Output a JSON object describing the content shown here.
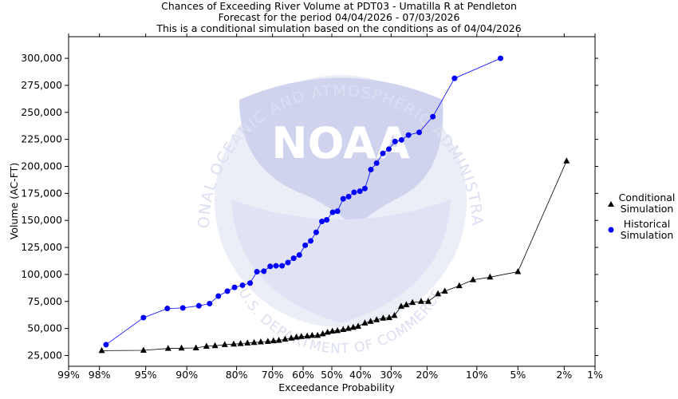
{
  "header": {
    "line1": "Chances of Exceeding River Volume at PDT03 - Umatilla R at Pendleton",
    "line2": "Forecast for the period 04/04/2026 - 07/03/2026",
    "line3": "This is a conditional simulation based on the conditions as of 04/04/2026"
  },
  "watermark": {
    "agency_text": "NATIONAL OCEANIC AND ATMOSPHERIC ADMINISTRATION",
    "logo_text": "NOAA",
    "dept_text": "U.S. DEPARTMENT OF COMMERCE"
  },
  "chart_data": {
    "type": "scatter",
    "xlabel": "Exceedance Probability",
    "ylabel": "Volume (AC-FT)",
    "x_scale": "normal-probability",
    "x_ticks": [
      {
        "p": 99,
        "label": "99%"
      },
      {
        "p": 98,
        "label": "98%"
      },
      {
        "p": 95,
        "label": "95%"
      },
      {
        "p": 90,
        "label": "90%"
      },
      {
        "p": 80,
        "label": "80%"
      },
      {
        "p": 70,
        "label": "70%"
      },
      {
        "p": 60,
        "label": "60%"
      },
      {
        "p": 50,
        "label": "50%"
      },
      {
        "p": 40,
        "label": "40%"
      },
      {
        "p": 30,
        "label": "30%"
      },
      {
        "p": 20,
        "label": "20%"
      },
      {
        "p": 10,
        "label": "10%"
      },
      {
        "p": 5,
        "label": "5%"
      },
      {
        "p": 2,
        "label": "2%"
      },
      {
        "p": 1,
        "label": "1%"
      }
    ],
    "xlim": [
      99,
      1
    ],
    "ylim": [
      15000,
      320000
    ],
    "y_ticks": [
      25000,
      50000,
      75000,
      100000,
      125000,
      150000,
      175000,
      200000,
      225000,
      250000,
      275000,
      300000
    ],
    "y_tick_labels": [
      "25,000",
      "50,000",
      "75,000",
      "100,000",
      "125,000",
      "150,000",
      "175,000",
      "200,000",
      "225,000",
      "250,000",
      "275,000",
      "300,000"
    ],
    "grid": false,
    "legend_placement": "right",
    "series": [
      {
        "name": "Conditional Simulation",
        "legend_line1": "Conditional",
        "legend_line2": "Simulation",
        "marker": "triangle",
        "color": "#000000",
        "points": [
          [
            97.9,
            29500
          ],
          [
            95.2,
            29800
          ],
          [
            92.6,
            31500
          ],
          [
            90.8,
            31800
          ],
          [
            88.5,
            32000
          ],
          [
            86.6,
            33500
          ],
          [
            84.9,
            34000
          ],
          [
            82.8,
            35000
          ],
          [
            80.7,
            35500
          ],
          [
            79.0,
            36000
          ],
          [
            77.2,
            36500
          ],
          [
            75.4,
            37000
          ],
          [
            73.5,
            37500
          ],
          [
            71.4,
            38000
          ],
          [
            69.7,
            38500
          ],
          [
            68.0,
            39000
          ],
          [
            66.0,
            40000
          ],
          [
            64.0,
            41000
          ],
          [
            62.3,
            42000
          ],
          [
            60.6,
            42500
          ],
          [
            58.6,
            43000
          ],
          [
            56.9,
            43500
          ],
          [
            55.0,
            43500
          ],
          [
            53.2,
            45000
          ],
          [
            51.5,
            46500
          ],
          [
            49.8,
            47500
          ],
          [
            48.0,
            48000
          ],
          [
            46.0,
            49000
          ],
          [
            44.2,
            50000
          ],
          [
            42.5,
            51000
          ],
          [
            40.8,
            52000
          ],
          [
            38.5,
            55000
          ],
          [
            36.6,
            56500
          ],
          [
            34.6,
            58000
          ],
          [
            32.5,
            59500
          ],
          [
            30.6,
            60000
          ],
          [
            29.0,
            62000
          ],
          [
            27.0,
            70500
          ],
          [
            25.5,
            72000
          ],
          [
            23.8,
            74000
          ],
          [
            21.5,
            75000
          ],
          [
            19.7,
            75000
          ],
          [
            17.4,
            82000
          ],
          [
            15.9,
            84500
          ],
          [
            13.0,
            89500
          ],
          [
            10.6,
            95000
          ],
          [
            8.1,
            97500
          ],
          [
            5.0,
            102500
          ],
          [
            1.9,
            205000
          ]
        ]
      },
      {
        "name": "Historical Simulation",
        "legend_line1": "Historical",
        "legend_line2": "Simulation",
        "marker": "circle",
        "color": "#0000ff",
        "points": [
          [
            97.7,
            35000
          ],
          [
            95.2,
            60000
          ],
          [
            92.7,
            68500
          ],
          [
            90.6,
            69000
          ],
          [
            88.0,
            71000
          ],
          [
            86.0,
            73000
          ],
          [
            84.2,
            80000
          ],
          [
            82.2,
            84500
          ],
          [
            80.5,
            88000
          ],
          [
            78.5,
            90000
          ],
          [
            76.5,
            92000
          ],
          [
            74.6,
            102500
          ],
          [
            72.6,
            103000
          ],
          [
            70.7,
            107500
          ],
          [
            68.9,
            108000
          ],
          [
            67.0,
            108000
          ],
          [
            65.1,
            111000
          ],
          [
            63.2,
            115000
          ],
          [
            61.3,
            118000
          ],
          [
            59.3,
            127000
          ],
          [
            57.4,
            131000
          ],
          [
            55.5,
            139000
          ],
          [
            53.5,
            149000
          ],
          [
            51.8,
            150500
          ],
          [
            49.7,
            157500
          ],
          [
            48.0,
            158500
          ],
          [
            46.0,
            170000
          ],
          [
            44.1,
            172000
          ],
          [
            42.2,
            176000
          ],
          [
            40.2,
            177000
          ],
          [
            38.5,
            179500
          ],
          [
            36.5,
            197000
          ],
          [
            34.6,
            203000
          ],
          [
            32.6,
            212000
          ],
          [
            30.7,
            216000
          ],
          [
            28.8,
            223000
          ],
          [
            26.9,
            224500
          ],
          [
            24.9,
            229000
          ],
          [
            22.0,
            231500
          ],
          [
            18.6,
            246000
          ],
          [
            13.9,
            281500
          ],
          [
            6.8,
            300000
          ]
        ]
      }
    ]
  }
}
